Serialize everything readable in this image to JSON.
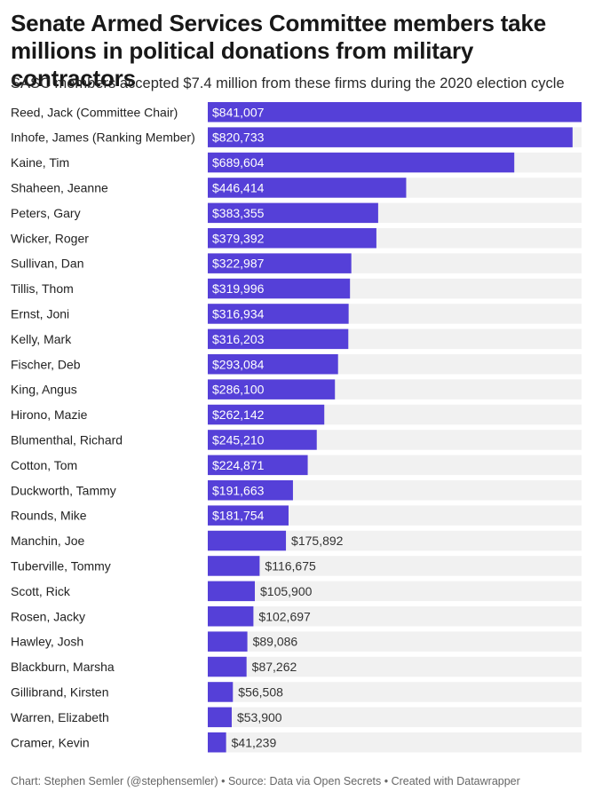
{
  "header": {
    "title": "Senate Armed Services Committee members take millions in political donations from military contractors",
    "subtitle": "SASC members accepted $7.4 million from these firms during the 2020 election cycle"
  },
  "footer": {
    "text": "Chart: Stephen Semler (@stephensemler) • Source: Data via Open Secrets • Created with Datawrapper"
  },
  "chart_data": {
    "type": "bar",
    "orientation": "horizontal",
    "title": "Senate Armed Services Committee members take millions in political donations from military contractors",
    "subtitle": "SASC members accepted $7.4 million from these firms during the 2020 election cycle",
    "categories": [
      "Reed, Jack (Committee Chair)",
      "Inhofe, James (Ranking Member)",
      "Kaine, Tim",
      "Shaheen, Jeanne",
      "Peters, Gary",
      "Wicker, Roger",
      "Sullivan, Dan",
      "Tillis, Thom",
      "Ernst, Joni",
      "Kelly, Mark",
      "Fischer, Deb",
      "King, Angus",
      "Hirono, Mazie",
      "Blumenthal, Richard",
      "Cotton, Tom",
      "Duckworth, Tammy",
      "Rounds, Mike",
      "Manchin, Joe",
      "Tuberville, Tommy",
      "Scott, Rick",
      "Rosen, Jacky",
      "Hawley, Josh",
      "Blackburn, Marsha",
      "Gillibrand, Kirsten",
      "Warren, Elizabeth",
      "Cramer, Kevin"
    ],
    "values": [
      841007,
      820733,
      689604,
      446414,
      383355,
      379392,
      322987,
      319996,
      316934,
      316203,
      293084,
      286100,
      262142,
      245210,
      224871,
      191663,
      181754,
      175892,
      116675,
      105900,
      102697,
      89086,
      87262,
      56508,
      53900,
      41239
    ],
    "value_labels": [
      "$841,007",
      "$820,733",
      "$689,604",
      "$446,414",
      "$383,355",
      "$379,392",
      "$322,987",
      "$319,996",
      "$316,934",
      "$316,203",
      "$293,084",
      "$286,100",
      "$262,142",
      "$245,210",
      "$224,871",
      "$191,663",
      "$181,754",
      "$175,892",
      "$116,675",
      "$105,900",
      "$102,697",
      "$89,086",
      "$87,262",
      "$56,508",
      "$53,900",
      "$41,239"
    ],
    "xlim": [
      0,
      841007
    ],
    "bar_color": "#5540d8",
    "track_color": "#f1f1f1",
    "grid": false
  }
}
